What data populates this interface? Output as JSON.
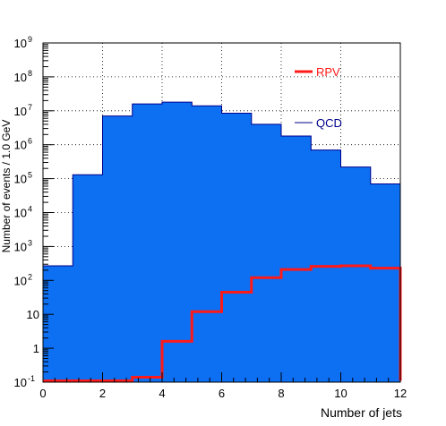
{
  "chart_data": {
    "type": "histogram",
    "xlabel": "Number of jets",
    "ylabel": "Number of events / 1.0 GeV",
    "xlim": [
      0,
      12
    ],
    "ylim": [
      0.1,
      1000000000
    ],
    "yscale": "log",
    "grid": true,
    "legend_position": "top-right",
    "bin_edges": [
      0,
      1,
      2,
      3,
      4,
      5,
      6,
      7,
      8,
      9,
      10,
      11,
      12
    ],
    "xticks": [
      {
        "value": 0,
        "label": "0"
      },
      {
        "value": 2,
        "label": "2"
      },
      {
        "value": 4,
        "label": "4"
      },
      {
        "value": 6,
        "label": "6"
      },
      {
        "value": 8,
        "label": "8"
      },
      {
        "value": 10,
        "label": "10"
      },
      {
        "value": 12,
        "label": "12"
      }
    ],
    "yticks": [
      {
        "value": 0.1,
        "base": "10",
        "exp": "-1"
      },
      {
        "value": 1,
        "base": "1",
        "exp": ""
      },
      {
        "value": 10,
        "base": "10",
        "exp": ""
      },
      {
        "value": 100,
        "base": "10",
        "exp": "2"
      },
      {
        "value": 1000,
        "base": "10",
        "exp": "3"
      },
      {
        "value": 10000,
        "base": "10",
        "exp": "4"
      },
      {
        "value": 100000,
        "base": "10",
        "exp": "5"
      },
      {
        "value": 1000000,
        "base": "10",
        "exp": "6"
      },
      {
        "value": 10000000,
        "base": "10",
        "exp": "7"
      },
      {
        "value": 100000000,
        "base": "10",
        "exp": "8"
      },
      {
        "value": 1000000000,
        "base": "10",
        "exp": "9"
      }
    ],
    "series": [
      {
        "name": "QCD",
        "style": "filled",
        "color": "#0d6ff2",
        "label_color": "#00008b",
        "values": [
          270,
          130000,
          7000000,
          16000000,
          18000000,
          14000000,
          8500000,
          4000000,
          1800000,
          700000,
          220000,
          70000
        ]
      },
      {
        "name": "RPV",
        "style": "line",
        "color": "#ff1a1a",
        "label_color": "#ff1a1a",
        "values": [
          0.1,
          0.1,
          0.1,
          0.14,
          1.6,
          12,
          45,
          120,
          210,
          260,
          270,
          230
        ]
      }
    ]
  }
}
